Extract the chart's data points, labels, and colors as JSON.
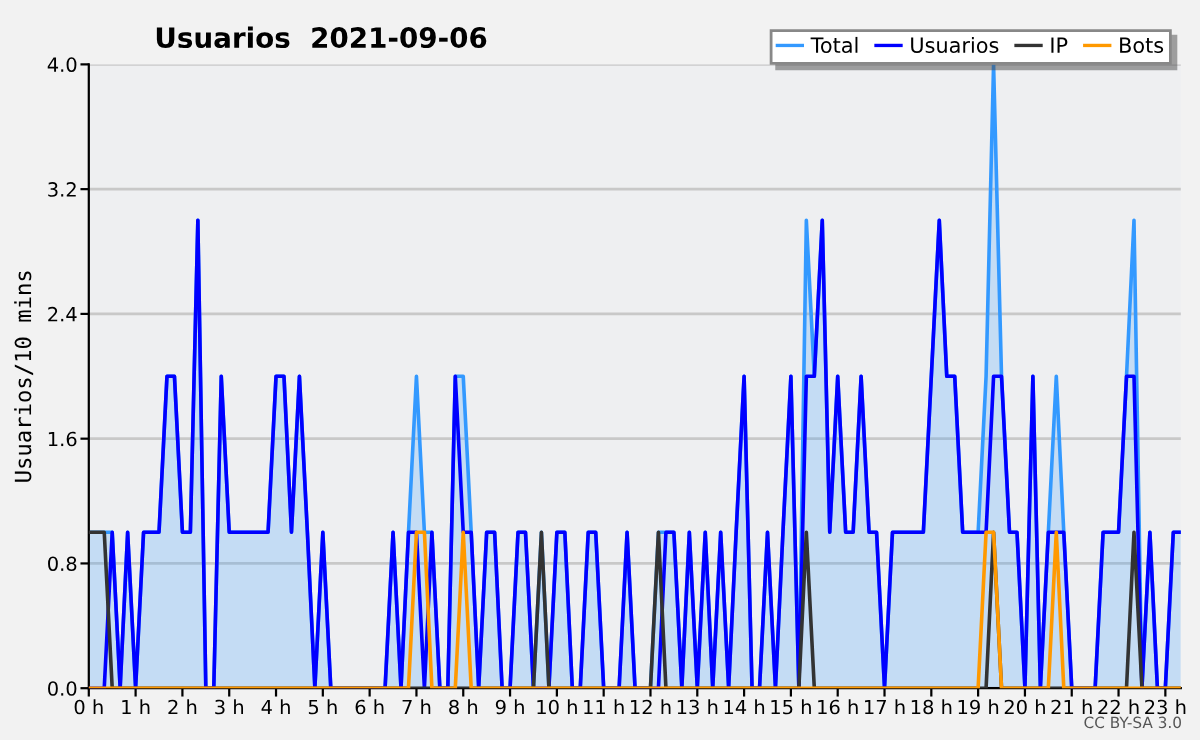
{
  "chart_data": {
    "type": "line",
    "title": "Usuarios  2021-09-06",
    "ylabel": "Usuarios/10 mins",
    "annotations": [
      "CC BY-SA 3.0"
    ],
    "x": [
      0,
      0.17,
      0.33,
      0.5,
      0.67,
      0.83,
      1,
      1.17,
      1.33,
      1.5,
      1.67,
      1.83,
      2,
      2.17,
      2.33,
      2.5,
      2.67,
      2.83,
      3,
      3.17,
      3.33,
      3.5,
      3.67,
      3.83,
      4,
      4.17,
      4.33,
      4.5,
      4.67,
      4.83,
      5,
      5.17,
      5.33,
      5.5,
      5.67,
      5.83,
      6,
      6.17,
      6.33,
      6.5,
      6.67,
      6.83,
      7,
      7.17,
      7.33,
      7.5,
      7.67,
      7.83,
      8,
      8.17,
      8.33,
      8.5,
      8.67,
      8.83,
      9,
      9.17,
      9.33,
      9.5,
      9.67,
      9.83,
      10,
      10.17,
      10.33,
      10.5,
      10.67,
      10.83,
      11,
      11.17,
      11.33,
      11.5,
      11.67,
      11.83,
      12,
      12.17,
      12.33,
      12.5,
      12.67,
      12.83,
      13,
      13.17,
      13.33,
      13.5,
      13.67,
      13.83,
      14,
      14.17,
      14.33,
      14.5,
      14.67,
      14.83,
      15,
      15.17,
      15.33,
      15.5,
      15.67,
      15.83,
      16,
      16.17,
      16.33,
      16.5,
      16.67,
      16.83,
      17,
      17.17,
      17.33,
      17.5,
      17.67,
      17.83,
      18,
      18.17,
      18.33,
      18.5,
      18.67,
      18.83,
      19,
      19.17,
      19.33,
      19.5,
      19.67,
      19.83,
      20,
      20.17,
      20.33,
      20.5,
      20.67,
      20.83,
      21,
      21.17,
      21.33,
      21.5,
      21.67,
      21.83,
      22,
      22.17,
      22.33,
      22.5,
      22.67,
      22.83,
      23,
      23.17,
      23.33
    ],
    "series": [
      {
        "name": "Total",
        "type": "area",
        "color": "#3399ff",
        "values": [
          1,
          1,
          1,
          1,
          0,
          1,
          0,
          1,
          1,
          1,
          2,
          2,
          1,
          1,
          3,
          0,
          0,
          2,
          1,
          1,
          1,
          1,
          1,
          1,
          2,
          2,
          1,
          2,
          1,
          0,
          1,
          0,
          0,
          0,
          0,
          0,
          0,
          0,
          0,
          1,
          0,
          1,
          2,
          1,
          1,
          0,
          0,
          2,
          2,
          1,
          0,
          1,
          1,
          0,
          0,
          1,
          1,
          0,
          1,
          0,
          1,
          1,
          0,
          0,
          1,
          1,
          0,
          0,
          0,
          1,
          0,
          0,
          0,
          1,
          1,
          1,
          0,
          1,
          0,
          1,
          0,
          1,
          0,
          1,
          2,
          0,
          0,
          1,
          0,
          1,
          2,
          0,
          3,
          2,
          3,
          1,
          2,
          1,
          1,
          2,
          1,
          1,
          0,
          1,
          1,
          1,
          1,
          1,
          2,
          3,
          2,
          2,
          1,
          1,
          1,
          2,
          4,
          2,
          1,
          1,
          0,
          2,
          0,
          1,
          2,
          1,
          0,
          0,
          0,
          0,
          1,
          1,
          1,
          2,
          3,
          0,
          1,
          0,
          0,
          1,
          1
        ]
      },
      {
        "name": "Usuarios",
        "type": "line",
        "color": "#0000ff",
        "values": [
          0,
          0,
          0,
          1,
          0,
          1,
          0,
          1,
          1,
          1,
          2,
          2,
          1,
          1,
          3,
          0,
          0,
          2,
          1,
          1,
          1,
          1,
          1,
          1,
          2,
          2,
          1,
          2,
          1,
          0,
          1,
          0,
          0,
          0,
          0,
          0,
          0,
          0,
          0,
          1,
          0,
          1,
          1,
          0,
          1,
          0,
          0,
          2,
          1,
          1,
          0,
          1,
          1,
          0,
          0,
          1,
          1,
          0,
          0,
          0,
          1,
          1,
          0,
          0,
          1,
          1,
          0,
          0,
          0,
          1,
          0,
          0,
          0,
          0,
          1,
          1,
          0,
          1,
          0,
          1,
          0,
          1,
          0,
          1,
          2,
          0,
          0,
          1,
          0,
          1,
          2,
          0,
          2,
          2,
          3,
          1,
          2,
          1,
          1,
          2,
          1,
          1,
          0,
          1,
          1,
          1,
          1,
          1,
          2,
          3,
          2,
          2,
          1,
          1,
          1,
          1,
          2,
          2,
          1,
          1,
          0,
          2,
          0,
          1,
          1,
          1,
          0,
          0,
          0,
          0,
          1,
          1,
          1,
          2,
          2,
          0,
          1,
          0,
          0,
          1,
          1
        ]
      },
      {
        "name": "IP",
        "type": "line",
        "color": "#333333",
        "values": [
          1,
          1,
          1,
          0,
          0,
          0,
          0,
          0,
          0,
          0,
          0,
          0,
          0,
          0,
          0,
          0,
          0,
          0,
          0,
          0,
          0,
          0,
          0,
          0,
          0,
          0,
          0,
          0,
          0,
          0,
          0,
          0,
          0,
          0,
          0,
          0,
          0,
          0,
          0,
          0,
          0,
          0,
          0,
          0,
          0,
          0,
          0,
          0,
          0,
          0,
          0,
          0,
          0,
          0,
          0,
          0,
          0,
          0,
          1,
          0,
          0,
          0,
          0,
          0,
          0,
          0,
          0,
          0,
          0,
          0,
          0,
          0,
          0,
          1,
          0,
          0,
          0,
          0,
          0,
          0,
          0,
          0,
          0,
          0,
          0,
          0,
          0,
          0,
          0,
          0,
          0,
          0,
          1,
          0,
          0,
          0,
          0,
          0,
          0,
          0,
          0,
          0,
          0,
          0,
          0,
          0,
          0,
          0,
          0,
          0,
          0,
          0,
          0,
          0,
          0,
          0,
          1,
          0,
          0,
          0,
          0,
          0,
          0,
          0,
          0,
          0,
          0,
          0,
          0,
          0,
          0,
          0,
          0,
          0,
          1,
          0,
          0,
          0,
          0,
          0,
          0
        ]
      },
      {
        "name": "Bots",
        "type": "line",
        "color": "#ff9900",
        "values": [
          0,
          0,
          0,
          0,
          0,
          0,
          0,
          0,
          0,
          0,
          0,
          0,
          0,
          0,
          0,
          0,
          0,
          0,
          0,
          0,
          0,
          0,
          0,
          0,
          0,
          0,
          0,
          0,
          0,
          0,
          0,
          0,
          0,
          0,
          0,
          0,
          0,
          0,
          0,
          0,
          0,
          0,
          1,
          1,
          0,
          0,
          0,
          0,
          1,
          0,
          0,
          0,
          0,
          0,
          0,
          0,
          0,
          0,
          0,
          0,
          0,
          0,
          0,
          0,
          0,
          0,
          0,
          0,
          0,
          0,
          0,
          0,
          0,
          0,
          0,
          0,
          0,
          0,
          0,
          0,
          0,
          0,
          0,
          0,
          0,
          0,
          0,
          0,
          0,
          0,
          0,
          0,
          0,
          0,
          0,
          0,
          0,
          0,
          0,
          0,
          0,
          0,
          0,
          0,
          0,
          0,
          0,
          0,
          0,
          0,
          0,
          0,
          0,
          0,
          0,
          1,
          1,
          0,
          0,
          0,
          0,
          0,
          0,
          0,
          1,
          0,
          0,
          0,
          0,
          0,
          0,
          0,
          0,
          0,
          0,
          0,
          0,
          0,
          0,
          0,
          0
        ]
      }
    ],
    "xlim": [
      0,
      23.33
    ],
    "xticks": [
      {
        "value": 0,
        "label": "0 h"
      },
      {
        "value": 1,
        "label": "1 h"
      },
      {
        "value": 2,
        "label": "2 h"
      },
      {
        "value": 3,
        "label": "3 h"
      },
      {
        "value": 4,
        "label": "4 h"
      },
      {
        "value": 5,
        "label": "5 h"
      },
      {
        "value": 6,
        "label": "6 h"
      },
      {
        "value": 7,
        "label": "7 h"
      },
      {
        "value": 8,
        "label": "8 h"
      },
      {
        "value": 9,
        "label": "9 h"
      },
      {
        "value": 10,
        "label": "10 h"
      },
      {
        "value": 11,
        "label": "11 h"
      },
      {
        "value": 12,
        "label": "12 h"
      },
      {
        "value": 13,
        "label": "13 h"
      },
      {
        "value": 14,
        "label": "14 h"
      },
      {
        "value": 15,
        "label": "15 h"
      },
      {
        "value": 16,
        "label": "16 h"
      },
      {
        "value": 17,
        "label": "17 h"
      },
      {
        "value": 18,
        "label": "18 h"
      },
      {
        "value": 19,
        "label": "19 h"
      },
      {
        "value": 20,
        "label": "20 h"
      },
      {
        "value": 21,
        "label": "21 h"
      },
      {
        "value": 22,
        "label": "22 h"
      },
      {
        "value": 23,
        "label": "23 h"
      }
    ],
    "ylim": [
      0,
      4.0
    ],
    "yticks": [
      {
        "value": 0,
        "label": "0.0"
      },
      {
        "value": 0.8,
        "label": "0.8"
      },
      {
        "value": 1.6,
        "label": "1.6"
      },
      {
        "value": 2.4,
        "label": "2.4"
      },
      {
        "value": 3.2,
        "label": "3.2"
      },
      {
        "value": 4.0,
        "label": "4.0"
      }
    ],
    "grid": "y",
    "legend": "top right",
    "marker": "none",
    "line_style": "solid"
  }
}
